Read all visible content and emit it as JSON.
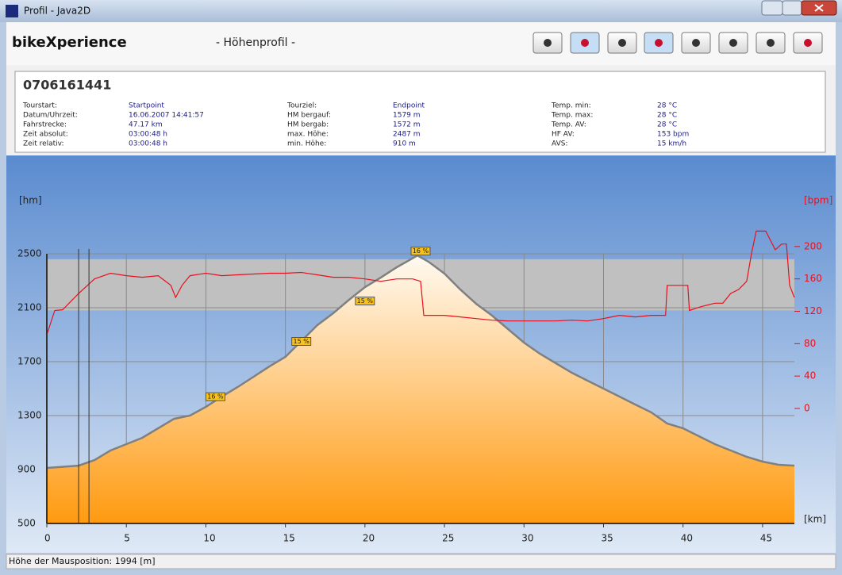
{
  "window": {
    "title": "Profil - Java2D"
  },
  "header": {
    "brand": "bikeXperience",
    "view": "- Höhenprofil -"
  },
  "info": {
    "title": "0706161441",
    "columns": [
      [
        {
          "label": "Tourstart:",
          "value": "Startpoint"
        },
        {
          "label": "Datum/Uhrzeit:",
          "value": "16.06.2007 14:41:57"
        },
        {
          "label": "Fahrstrecke:",
          "value": "47.17 km"
        },
        {
          "label": "Zeit absolut:",
          "value": "03:00:48 h"
        },
        {
          "label": "Zeit relativ:",
          "value": "03:00:48 h"
        }
      ],
      [
        {
          "label": "Tourziel:",
          "value": "Endpoint"
        },
        {
          "label": "HM bergauf:",
          "value": "1579 m"
        },
        {
          "label": "HM bergab:",
          "value": "1572 m"
        },
        {
          "label": "max. Höhe:",
          "value": "2487 m"
        },
        {
          "label": "min. Höhe:",
          "value": "910 m"
        }
      ],
      [
        {
          "label": "Temp. min:",
          "value": "28 °C"
        },
        {
          "label": "Temp. max:",
          "value": "28 °C"
        },
        {
          "label": "Temp. AV:",
          "value": "28 °C"
        },
        {
          "label": "HF AV:",
          "value": "153 bpm"
        },
        {
          "label": "AVS:",
          "value": "15 km/h"
        }
      ]
    ]
  },
  "status": "Höhe der Mausposition: 1994 [m]",
  "chart_data": {
    "type": "line",
    "ylabel": "[hm]",
    "y2label": "[bpm]",
    "xlabel": "[km]",
    "xlim": [
      0,
      47
    ],
    "xticks": [
      0,
      5,
      10,
      15,
      20,
      25,
      30,
      35,
      40,
      45
    ],
    "ylim": [
      500,
      2500
    ],
    "yticks": [
      500,
      900,
      1300,
      1700,
      2100,
      2500
    ],
    "y2lim": [
      -142,
      191
    ],
    "y2ticks": [
      0,
      40,
      80,
      120,
      160,
      200
    ],
    "grid": true,
    "zone": [
      2080,
      2460
    ],
    "markers": [
      2,
      2.65
    ],
    "series": [
      {
        "color": "#808080",
        "fill": true,
        "x": [
          0,
          2,
          3,
          4,
          5,
          6,
          7,
          8,
          9,
          10,
          11,
          12,
          13,
          14,
          15,
          16,
          17,
          18,
          19,
          20,
          21,
          22,
          23.3,
          24,
          25,
          26,
          27,
          28,
          29,
          30,
          31,
          32,
          33,
          34,
          35,
          36,
          37,
          38,
          39,
          40,
          41,
          42,
          43,
          44,
          45,
          46,
          47
        ],
        "values": [
          912,
          929,
          970,
          1041,
          1088,
          1135,
          1206,
          1276,
          1300,
          1365,
          1441,
          1512,
          1588,
          1665,
          1735,
          1853,
          1970,
          2059,
          2159,
          2253,
          2324,
          2400,
          2487,
          2441,
          2353,
          2235,
          2129,
          2041,
          1941,
          1841,
          1759,
          1688,
          1618,
          1559,
          1500,
          1441,
          1382,
          1324,
          1241,
          1206,
          1147,
          1088,
          1041,
          994,
          959,
          935,
          929
        ]
      },
      {
        "color": "#e8101c",
        "axis": "y2",
        "x": [
          0,
          0.5,
          1,
          2,
          3,
          4,
          5,
          6,
          7,
          7.8,
          8.1,
          8.5,
          9,
          10,
          11,
          12,
          13,
          14,
          15,
          16,
          17,
          18,
          19,
          20,
          21,
          22,
          23,
          23.5,
          23.7,
          24,
          25,
          26,
          27,
          28,
          29,
          30,
          31,
          32,
          33,
          34,
          35,
          36,
          37,
          38,
          38.9,
          39,
          40.3,
          40.4,
          41,
          42,
          42.5,
          43,
          43.5,
          44,
          44.3,
          44.6,
          45.2,
          45.8,
          46.2,
          46.5,
          46.7,
          47
        ],
        "values": [
          91,
          121,
          122,
          142,
          160,
          167,
          164,
          162,
          164,
          152,
          137,
          152,
          164,
          167,
          164,
          165,
          166,
          167,
          167,
          168,
          165,
          162,
          162,
          160,
          157,
          160,
          160,
          157,
          115,
          115,
          115,
          113,
          111,
          109,
          108,
          108,
          108,
          108,
          109,
          108,
          111,
          115,
          113,
          115,
          115,
          152,
          152,
          121,
          125,
          130,
          130,
          142,
          147,
          157,
          191,
          219,
          219,
          196,
          203,
          203,
          152,
          137
        ]
      }
    ],
    "annotations": [
      {
        "text": "16 %",
        "x": 10.6,
        "y": 1440
      },
      {
        "text": "15 %",
        "x": 16,
        "y": 1850
      },
      {
        "text": "15 %",
        "x": 20,
        "y": 2150
      },
      {
        "text": "16 %",
        "x": 23.5,
        "y": 2520
      }
    ]
  }
}
